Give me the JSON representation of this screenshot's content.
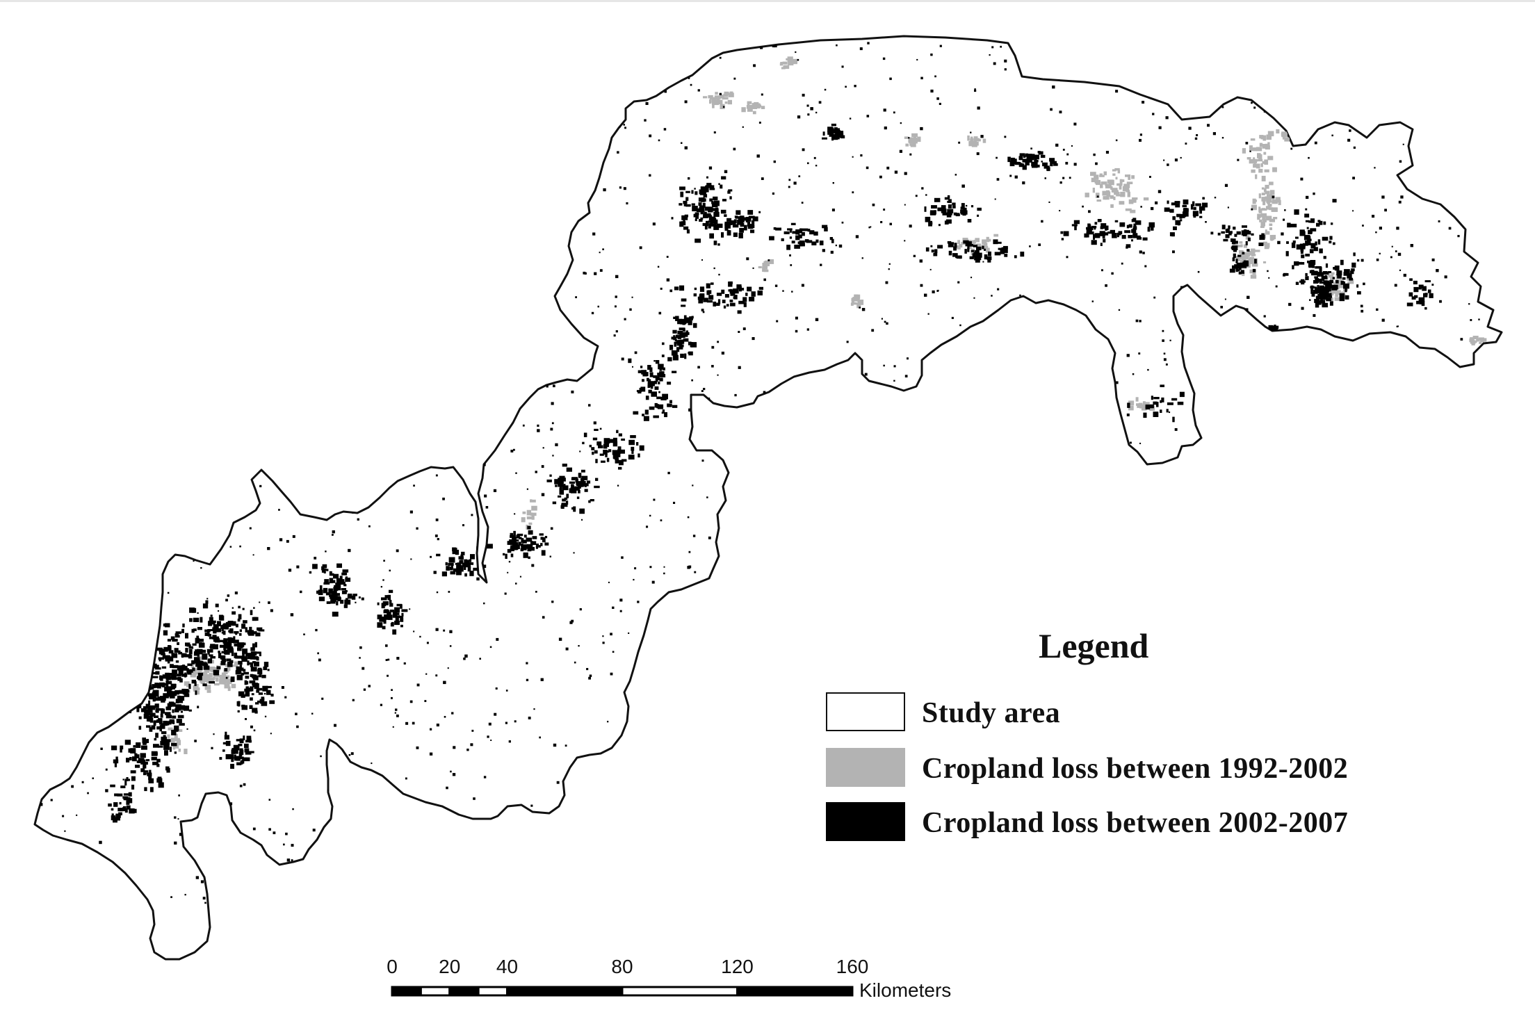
{
  "map": {
    "legend": {
      "title": "Legend",
      "items": [
        {
          "key": "study_area",
          "label": "Study area",
          "fill": "#ffffff",
          "stroke": "#111111"
        },
        {
          "key": "loss_1992_2002",
          "label": "Cropland loss between  1992-2002",
          "fill": "#b3b3b3",
          "stroke": "#b3b3b3"
        },
        {
          "key": "loss_2002_2007",
          "label": "Cropland loss between  2002-2007",
          "fill": "#000000",
          "stroke": "#000000"
        }
      ]
    },
    "scale_bar": {
      "ticks": [
        "0",
        "20",
        "40",
        "80",
        "120",
        "160"
      ],
      "tick_values_km": [
        0,
        20,
        40,
        80,
        120,
        160
      ],
      "unit": "Kilometers"
    },
    "colors": {
      "outline": "#111111",
      "loss_1992_2002": "#b3b3b3",
      "loss_2002_2007": "#000000",
      "background": "#ffffff"
    }
  }
}
